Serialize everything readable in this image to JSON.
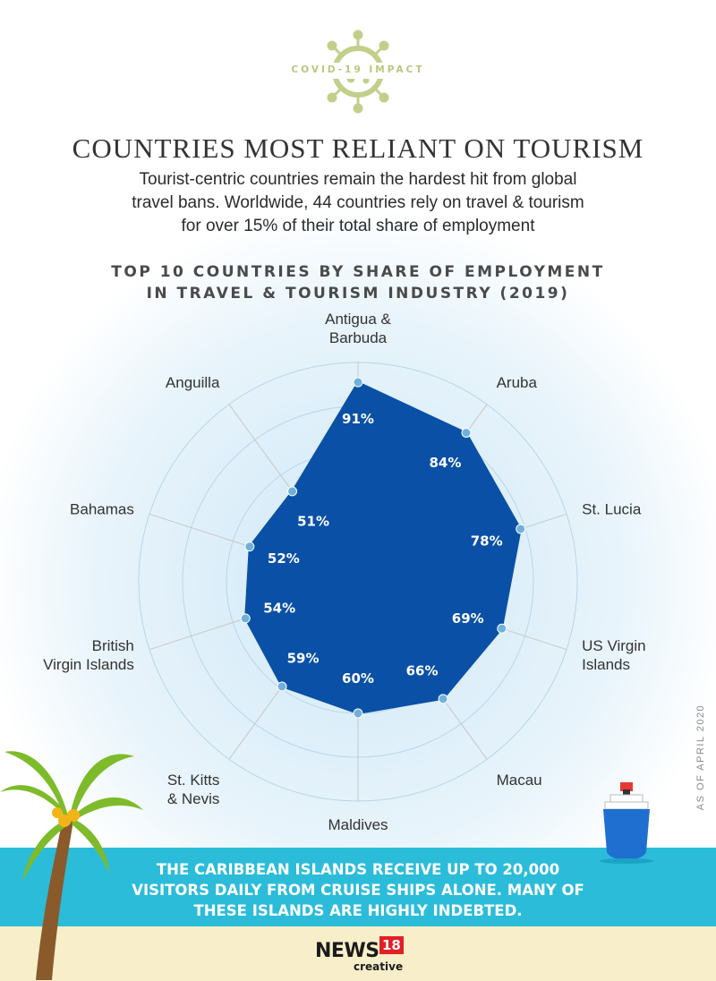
{
  "badge": {
    "text": "COVID-19 IMPACT"
  },
  "header": {
    "title": "COUNTRIES MOST RELIANT ON TOURISM",
    "subtitle_lines": [
      "Tourist-centric countries remain the hardest hit from global",
      "travel bans. Worldwide, 44 countries rely on travel & tourism",
      "for over 15% of their total share of employment"
    ]
  },
  "chart_data": {
    "type": "radar",
    "title_lines": [
      "TOP 10 COUNTRIES BY SHARE OF EMPLOYMENT",
      "IN TRAVEL & TOURISM INDUSTRY (2019)"
    ],
    "categories": [
      [
        "Antigua &",
        "Barbuda"
      ],
      [
        "Aruba"
      ],
      [
        "St. Lucia"
      ],
      [
        "US Virgin",
        "Islands"
      ],
      [
        "Macau"
      ],
      [
        "Maldives"
      ],
      [
        "St. Kitts",
        "& Nevis"
      ],
      [
        "British",
        "Virgin Islands"
      ],
      [
        "Bahamas"
      ],
      [
        "Anguilla"
      ]
    ],
    "values": [
      91,
      84,
      78,
      69,
      66,
      60,
      59,
      54,
      52,
      51
    ],
    "value_labels": [
      "91%",
      "84%",
      "78%",
      "69%",
      "66%",
      "60%",
      "59%",
      "54%",
      "52%",
      "51%"
    ],
    "rmax": 100,
    "grid_rings": 5,
    "fill_color": "#0a50a6",
    "point_color": "#6fb1dc"
  },
  "banner": {
    "lines": [
      "THE CARIBBEAN ISLANDS RECEIVE UP TO 20,000",
      "VISITORS DAILY FROM CRUISE SHIPS ALONE. MANY OF",
      "THESE ISLANDS ARE HIGHLY INDEBTED."
    ]
  },
  "side_note": "AS OF APRIL 2020",
  "logo": {
    "brand": "NEWS",
    "number": "18",
    "sub": "creative"
  }
}
